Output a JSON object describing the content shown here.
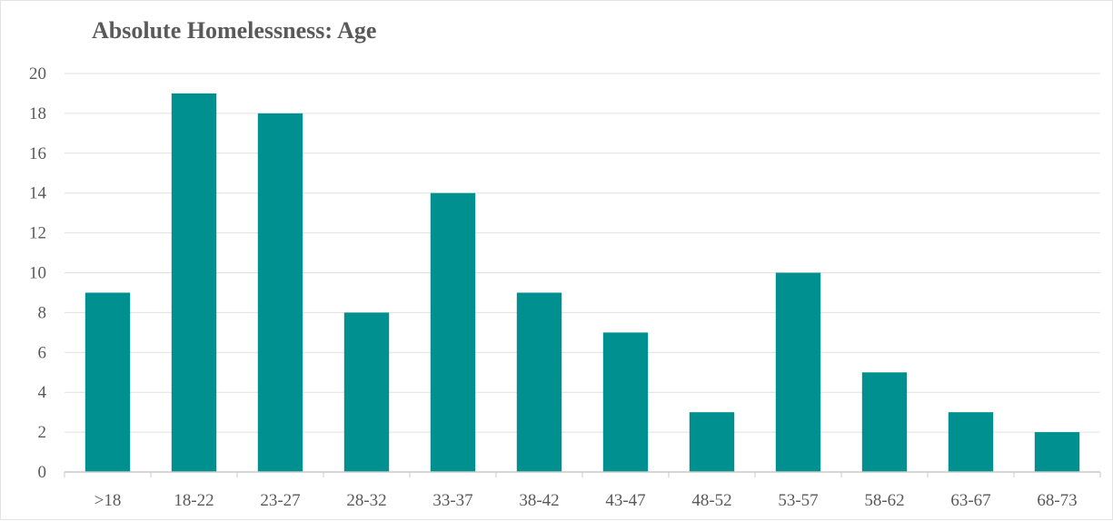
{
  "chart_data": {
    "type": "bar",
    "title": "Absolute Homelessness: Age",
    "xlabel": "",
    "ylabel": "",
    "categories": [
      ">18",
      "18-22",
      "23-27",
      "28-32",
      "33-37",
      "38-42",
      "43-47",
      "48-52",
      "53-57",
      "58-62",
      "63-67",
      "68-73"
    ],
    "values": [
      9,
      19,
      18,
      8,
      14,
      9,
      7,
      3,
      10,
      5,
      3,
      2
    ],
    "ylim": [
      0,
      20
    ],
    "yticks": [
      0,
      2,
      4,
      6,
      8,
      10,
      12,
      14,
      16,
      18,
      20
    ],
    "grid": true,
    "legend": "none",
    "colors": {
      "bar": "#009090",
      "grid": "#e0e0e0",
      "axis": "#c8c8c8",
      "text": "#595959"
    }
  }
}
